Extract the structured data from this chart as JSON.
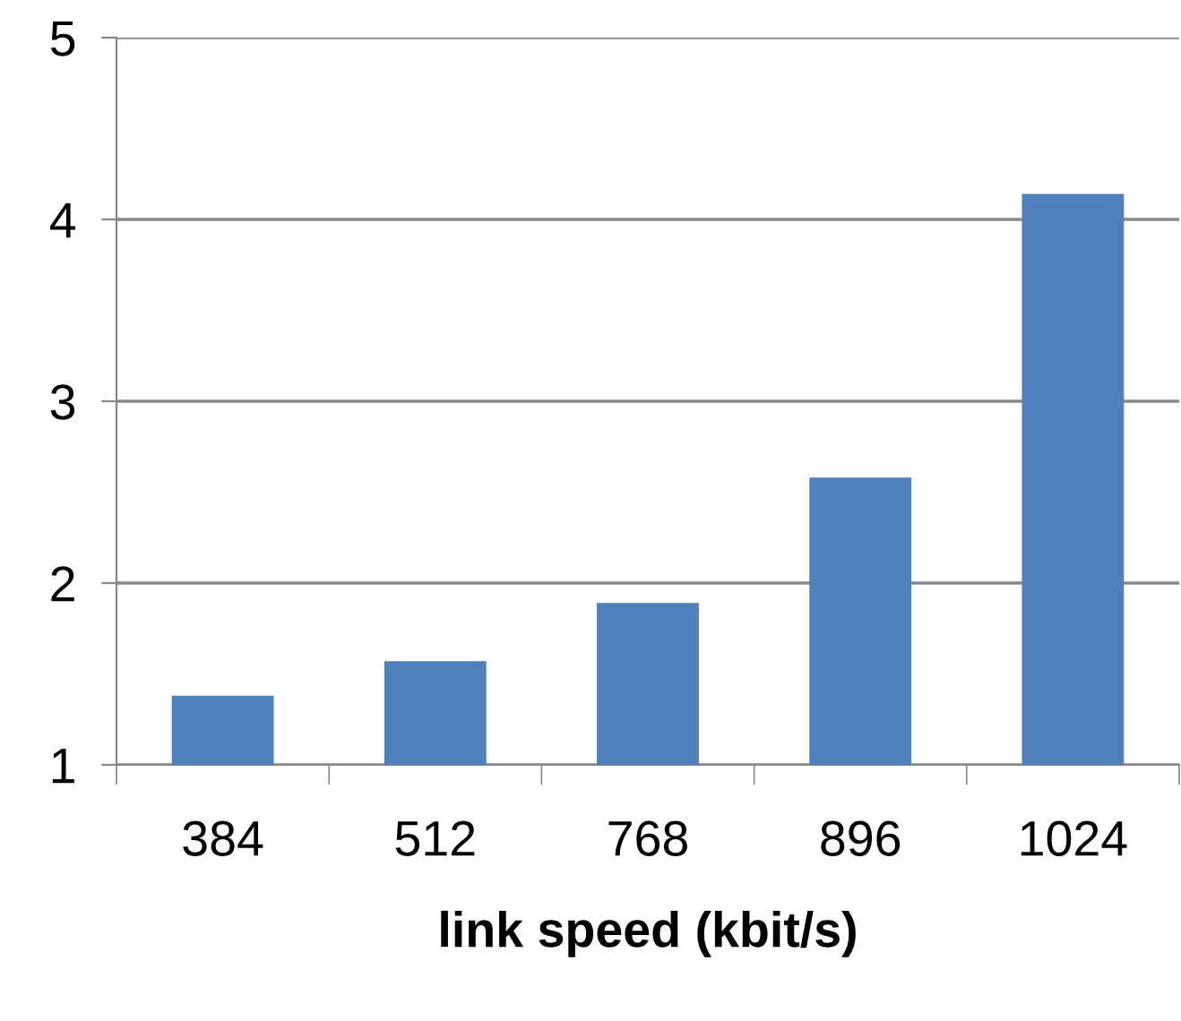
{
  "chart_data": {
    "type": "bar",
    "xlabel": "link speed (kbit/s)",
    "categories": [
      "384",
      "512",
      "768",
      "896",
      "1024"
    ],
    "values": [
      1.38,
      1.57,
      1.89,
      2.58,
      4.14
    ],
    "color": "#4f81bd",
    "ylim": [
      1,
      5
    ],
    "yticks": [
      1,
      2,
      3,
      4,
      5
    ],
    "grid": "y",
    "legend": false
  }
}
